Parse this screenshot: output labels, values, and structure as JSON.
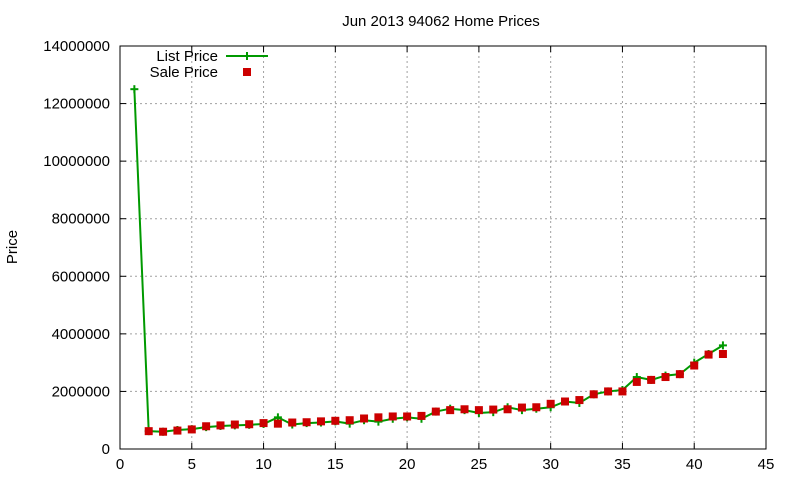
{
  "chart_data": {
    "type": "line",
    "title": "Jun 2013 94062 Home Prices",
    "xlabel": "",
    "ylabel": "Price",
    "xlim": [
      0,
      45
    ],
    "ylim": [
      0,
      14000000
    ],
    "x_ticks": [
      0,
      5,
      10,
      15,
      20,
      25,
      30,
      35,
      40,
      45
    ],
    "y_ticks": [
      0,
      2000000,
      4000000,
      6000000,
      8000000,
      10000000,
      12000000,
      14000000
    ],
    "grid": true,
    "legend_position": "top-left",
    "series": [
      {
        "name": "List Price",
        "style": "line+plus",
        "color": "#009900",
        "x": [
          1,
          2,
          3,
          4,
          5,
          6,
          7,
          8,
          9,
          10,
          11,
          12,
          13,
          14,
          15,
          16,
          17,
          18,
          19,
          20,
          21,
          22,
          23,
          24,
          25,
          26,
          27,
          28,
          29,
          30,
          31,
          32,
          33,
          34,
          35,
          36,
          37,
          38,
          39,
          40,
          41,
          42
        ],
        "values": [
          12500000,
          620000,
          600000,
          660000,
          690000,
          760000,
          800000,
          820000,
          840000,
          870000,
          1100000,
          850000,
          900000,
          920000,
          960000,
          880000,
          1000000,
          950000,
          1050000,
          1100000,
          1050000,
          1300000,
          1400000,
          1350000,
          1250000,
          1280000,
          1450000,
          1350000,
          1400000,
          1450000,
          1650000,
          1600000,
          1900000,
          2000000,
          2050000,
          2500000,
          2400000,
          2550000,
          2600000,
          3000000,
          3300000,
          3600000
        ]
      },
      {
        "name": "Sale Price",
        "style": "square",
        "color": "#cc0000",
        "x": [
          2,
          3,
          4,
          5,
          6,
          7,
          8,
          9,
          10,
          11,
          12,
          13,
          14,
          15,
          16,
          17,
          18,
          19,
          20,
          21,
          22,
          23,
          24,
          25,
          26,
          27,
          28,
          29,
          30,
          31,
          32,
          33,
          34,
          35,
          36,
          37,
          38,
          39,
          40,
          41,
          42
        ],
        "values": [
          620000,
          600000,
          640000,
          680000,
          790000,
          820000,
          850000,
          860000,
          900000,
          880000,
          920000,
          930000,
          960000,
          980000,
          1000000,
          1060000,
          1100000,
          1130000,
          1130000,
          1150000,
          1300000,
          1350000,
          1380000,
          1350000,
          1370000,
          1380000,
          1440000,
          1450000,
          1570000,
          1650000,
          1700000,
          1900000,
          2000000,
          2000000,
          2330000,
          2400000,
          2500000,
          2600000,
          2900000,
          3280000,
          3300000
        ]
      }
    ]
  }
}
